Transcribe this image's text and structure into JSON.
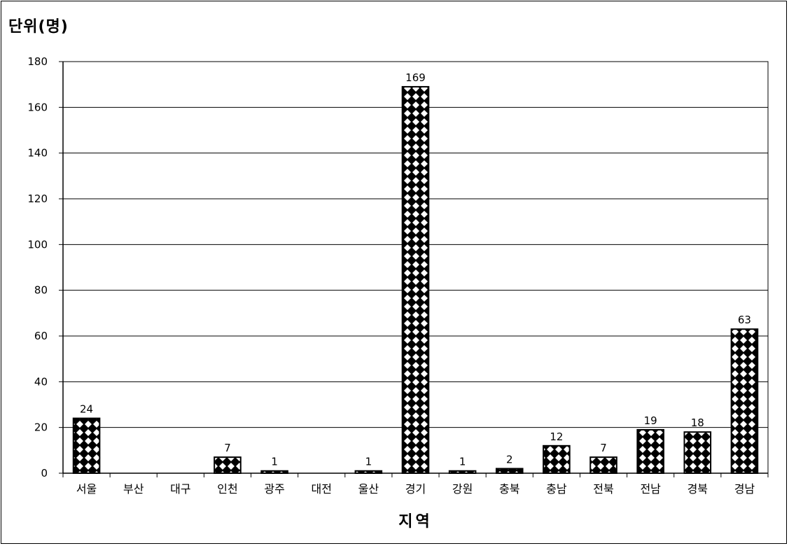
{
  "unit_label": "단위(명)",
  "chart_data": {
    "type": "bar",
    "categories": [
      "서울",
      "부산",
      "대구",
      "인천",
      "광주",
      "대전",
      "울산",
      "경기",
      "강원",
      "충북",
      "충남",
      "전북",
      "전남",
      "경북",
      "경남"
    ],
    "values": [
      24,
      0,
      0,
      7,
      1,
      0,
      1,
      169,
      1,
      2,
      12,
      7,
      19,
      18,
      63
    ],
    "data_labels": [
      "24",
      "",
      "",
      "7",
      "1",
      "",
      "1",
      "169",
      "1",
      "2",
      "12",
      "7",
      "19",
      "18",
      "63"
    ],
    "xlabel": "지역",
    "ylabel": "",
    "ylim": [
      0,
      180
    ],
    "yticks": [
      0,
      20,
      40,
      60,
      80,
      100,
      120,
      140,
      160,
      180
    ],
    "grid": true,
    "bar_pattern": "black-white-diamond-check"
  }
}
